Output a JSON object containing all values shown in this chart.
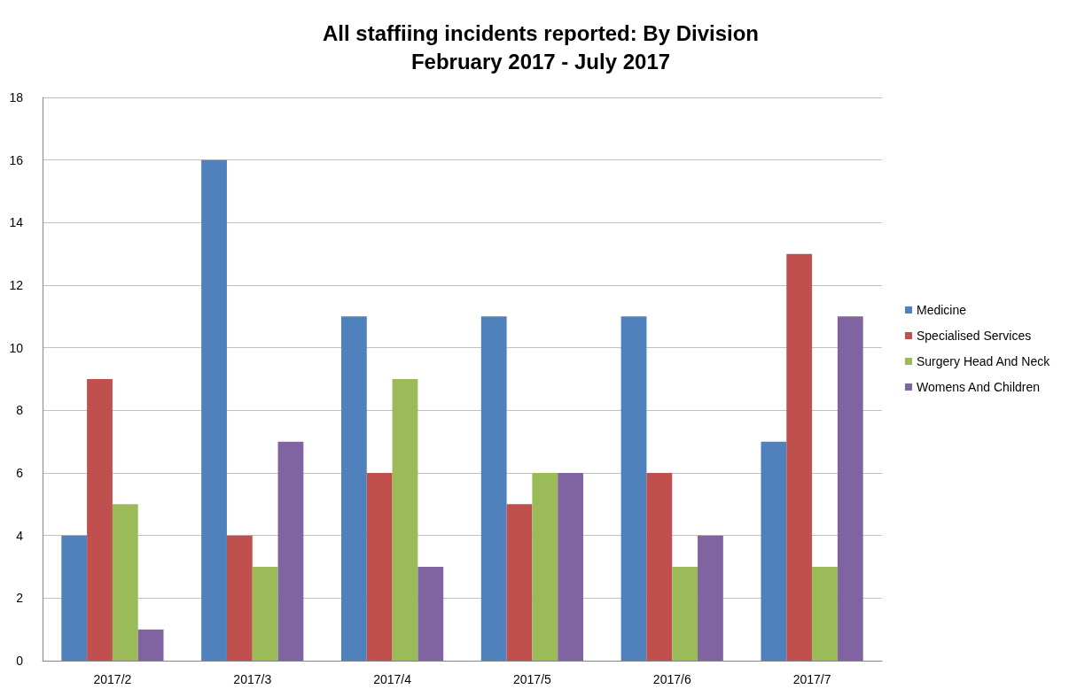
{
  "chart_data": {
    "type": "bar",
    "title": "All staffiing incidents reported: By Division",
    "subtitle": "February 2017 - July 2017",
    "categories": [
      "2017/2",
      "2017/3",
      "2017/4",
      "2017/5",
      "2017/6",
      "2017/7"
    ],
    "series": [
      {
        "name": "Medicine",
        "color": "#4f81bd",
        "values": [
          4,
          16,
          11,
          11,
          11,
          7
        ]
      },
      {
        "name": "Specialised Services",
        "color": "#c0504d",
        "values": [
          9,
          4,
          6,
          5,
          6,
          13
        ]
      },
      {
        "name": "Surgery Head And Neck",
        "color": "#9bbb59",
        "values": [
          5,
          3,
          9,
          6,
          3,
          3
        ]
      },
      {
        "name": "Womens And Children",
        "color": "#8064a2",
        "values": [
          1,
          7,
          3,
          6,
          4,
          11
        ]
      }
    ],
    "ylim": [
      0,
      18
    ],
    "yticks": [
      0,
      2,
      4,
      6,
      8,
      10,
      12,
      14,
      16,
      18
    ],
    "grid": "y",
    "legend": "right"
  }
}
